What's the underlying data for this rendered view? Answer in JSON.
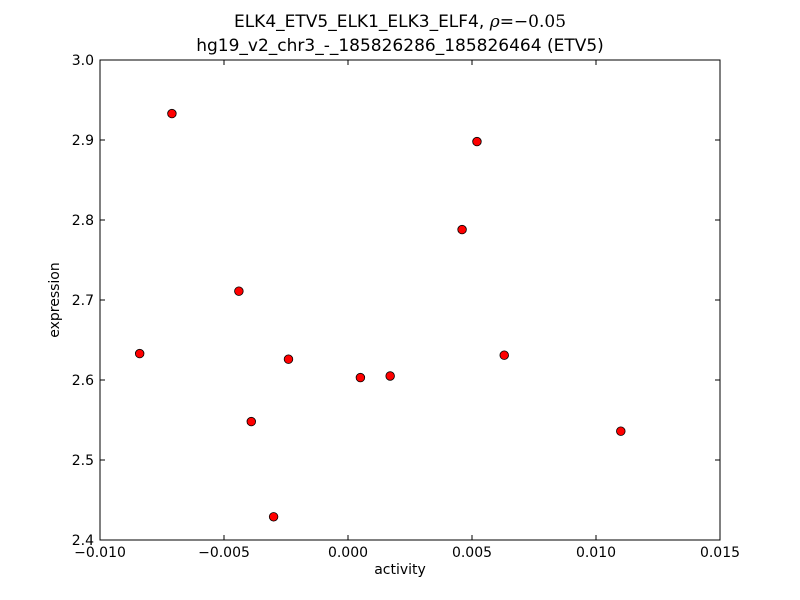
{
  "chart_data": {
    "type": "scatter",
    "title_line1_prefix": "ELK4_ETV5_ELK1_ELK3_ELF4, ",
    "title_line1_rho_symbol": "ρ",
    "title_line1_rho_value": "=−0.05",
    "title_line2": "hg19_v2_chr3_-_185826286_185826464 (ETV5)",
    "xlabel": "activity",
    "ylabel": "expression",
    "xlim": [
      -0.01,
      0.015
    ],
    "ylim": [
      2.4,
      3.0
    ],
    "xticks": [
      -0.01,
      -0.005,
      0.0,
      0.005,
      0.01,
      0.015
    ],
    "xtick_labels": [
      "−0.010",
      "−0.005",
      "0.000",
      "0.005",
      "0.010",
      "0.015"
    ],
    "yticks": [
      2.4,
      2.5,
      2.6,
      2.7,
      2.8,
      2.9,
      3.0
    ],
    "ytick_labels": [
      "2.4",
      "2.5",
      "2.6",
      "2.7",
      "2.8",
      "2.9",
      "3.0"
    ],
    "grid": false,
    "marker_color": "#ff0000",
    "marker_edge_color": "#000000",
    "points": [
      {
        "x": -0.0071,
        "y": 2.933
      },
      {
        "x": -0.0084,
        "y": 2.633
      },
      {
        "x": -0.0044,
        "y": 2.711
      },
      {
        "x": -0.0039,
        "y": 2.548
      },
      {
        "x": -0.003,
        "y": 2.429
      },
      {
        "x": -0.0024,
        "y": 2.626
      },
      {
        "x": 0.0005,
        "y": 2.603
      },
      {
        "x": 0.0017,
        "y": 2.605
      },
      {
        "x": 0.0046,
        "y": 2.788
      },
      {
        "x": 0.0052,
        "y": 2.898
      },
      {
        "x": 0.0063,
        "y": 2.631
      },
      {
        "x": 0.011,
        "y": 2.536
      }
    ]
  }
}
